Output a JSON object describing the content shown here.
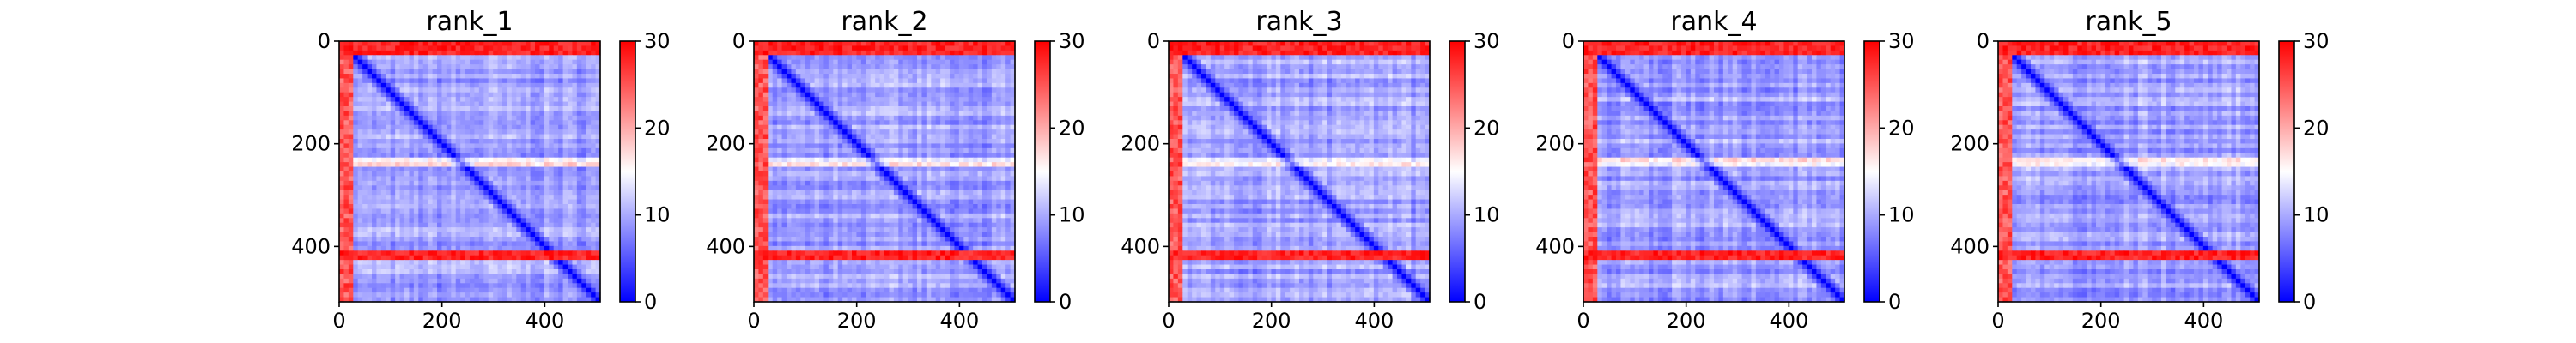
{
  "chart_data": [
    {
      "type": "heatmap",
      "title": "rank_1",
      "xlabel": "",
      "ylabel": "",
      "x_ticks": [
        "0",
        "200",
        "400"
      ],
      "y_ticks": [
        "0",
        "200",
        "400"
      ],
      "x_range": [
        0,
        508
      ],
      "y_range": [
        0,
        508
      ],
      "colorbar": {
        "ticks": [
          "0",
          "10",
          "20",
          "30"
        ],
        "range": [
          0,
          30
        ],
        "colormap": "bwr"
      },
      "pattern": {
        "red_row_bands": [
          [
            0,
            30
          ],
          [
            408,
            425
          ]
        ],
        "light_row_bands": [
          [
            226,
            246
          ]
        ],
        "diagonal_value": 0,
        "background_value": 5
      }
    },
    {
      "type": "heatmap",
      "title": "rank_2",
      "xlabel": "",
      "ylabel": "",
      "x_ticks": [
        "0",
        "200",
        "400"
      ],
      "y_ticks": [
        "0",
        "200",
        "400"
      ],
      "x_range": [
        0,
        508
      ],
      "y_range": [
        0,
        508
      ],
      "colorbar": {
        "ticks": [
          "0",
          "10",
          "20",
          "30"
        ],
        "range": [
          0,
          30
        ],
        "colormap": "bwr"
      },
      "pattern": {
        "red_row_bands": [
          [
            0,
            30
          ],
          [
            408,
            425
          ]
        ],
        "light_row_bands": [
          [
            226,
            246
          ]
        ],
        "diagonal_value": 0,
        "background_value": 5
      }
    },
    {
      "type": "heatmap",
      "title": "rank_3",
      "xlabel": "",
      "ylabel": "",
      "x_ticks": [
        "0",
        "200",
        "400"
      ],
      "y_ticks": [
        "0",
        "200",
        "400"
      ],
      "x_range": [
        0,
        508
      ],
      "y_range": [
        0,
        508
      ],
      "colorbar": {
        "ticks": [
          "0",
          "10",
          "20",
          "30"
        ],
        "range": [
          0,
          30
        ],
        "colormap": "bwr"
      },
      "pattern": {
        "red_row_bands": [
          [
            0,
            30
          ],
          [
            408,
            425
          ]
        ],
        "light_row_bands": [
          [
            226,
            246
          ]
        ],
        "diagonal_value": 0,
        "background_value": 5
      }
    },
    {
      "type": "heatmap",
      "title": "rank_4",
      "xlabel": "",
      "ylabel": "",
      "x_ticks": [
        "0",
        "200",
        "400"
      ],
      "y_ticks": [
        "0",
        "200",
        "400"
      ],
      "x_range": [
        0,
        508
      ],
      "y_range": [
        0,
        508
      ],
      "colorbar": {
        "ticks": [
          "0",
          "10",
          "20",
          "30"
        ],
        "range": [
          0,
          30
        ],
        "colormap": "bwr"
      },
      "pattern": {
        "red_row_bands": [
          [
            0,
            30
          ],
          [
            408,
            425
          ]
        ],
        "light_row_bands": [
          [
            226,
            246
          ]
        ],
        "diagonal_value": 0,
        "background_value": 5
      }
    },
    {
      "type": "heatmap",
      "title": "rank_5",
      "xlabel": "",
      "ylabel": "",
      "x_ticks": [
        "0",
        "200",
        "400"
      ],
      "y_ticks": [
        "0",
        "200",
        "400"
      ],
      "x_range": [
        0,
        508
      ],
      "y_range": [
        0,
        508
      ],
      "colorbar": {
        "ticks": [
          "0",
          "10",
          "20",
          "30"
        ],
        "range": [
          0,
          30
        ],
        "colormap": "bwr"
      },
      "pattern": {
        "red_row_bands": [
          [
            0,
            30
          ],
          [
            408,
            425
          ]
        ],
        "light_row_bands": [
          [
            226,
            246
          ]
        ],
        "diagonal_value": 0,
        "background_value": 5
      }
    }
  ],
  "colors": {
    "low": "#0000ff",
    "mid": "#ffffff",
    "high": "#ff0000"
  }
}
